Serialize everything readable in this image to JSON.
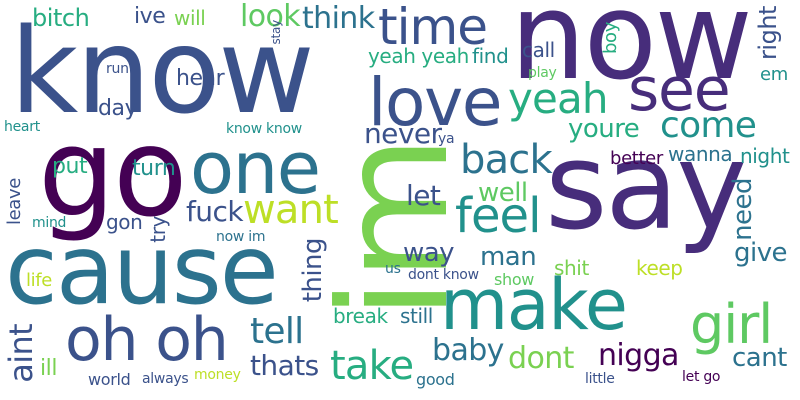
{
  "cloud": {
    "words": [
      {
        "text": "know",
        "color": "#3b528b"
      },
      {
        "text": "now",
        "color": "#472d7b"
      },
      {
        "text": "go",
        "color": "#440154"
      },
      {
        "text": "say",
        "color": "#472d7b"
      },
      {
        "text": "cause",
        "color": "#2c728e"
      },
      {
        "text": "im",
        "color": "#7ad151"
      },
      {
        "text": "make",
        "color": "#21918c"
      },
      {
        "text": "love",
        "color": "#3b528b"
      },
      {
        "text": "one",
        "color": "#2c728e"
      },
      {
        "text": "oh oh",
        "color": "#3b528b"
      },
      {
        "text": "time",
        "color": "#3b528b"
      },
      {
        "text": "see",
        "color": "#472d7b"
      },
      {
        "text": "yeah",
        "color": "#27ad81"
      },
      {
        "text": "girl",
        "color": "#5ec962"
      },
      {
        "text": "feel",
        "color": "#21918c"
      },
      {
        "text": "back",
        "color": "#2c728e"
      },
      {
        "text": "come",
        "color": "#21918c"
      },
      {
        "text": "want",
        "color": "#bddf26"
      },
      {
        "text": "take",
        "color": "#27ad81"
      },
      {
        "text": "tell",
        "color": "#2c728e"
      },
      {
        "text": "fuck",
        "color": "#3b528b"
      },
      {
        "text": "nigga",
        "color": "#440154"
      },
      {
        "text": "baby",
        "color": "#2c728e"
      },
      {
        "text": "dont",
        "color": "#7ad151"
      },
      {
        "text": "thing",
        "color": "#3b528b"
      },
      {
        "text": "thats",
        "color": "#3b528b"
      },
      {
        "text": "aint",
        "color": "#3b528b"
      },
      {
        "text": "look",
        "color": "#5ec962"
      },
      {
        "text": "think",
        "color": "#2c728e"
      },
      {
        "text": "never",
        "color": "#3b528b"
      },
      {
        "text": "youre",
        "color": "#27ad81"
      },
      {
        "text": "well",
        "color": "#5ec962"
      },
      {
        "text": "let",
        "color": "#3b528b"
      },
      {
        "text": "way",
        "color": "#3b528b"
      },
      {
        "text": "man",
        "color": "#2c728e"
      },
      {
        "text": "give",
        "color": "#2c728e"
      },
      {
        "text": "cant",
        "color": "#2c728e"
      },
      {
        "text": "need",
        "color": "#2c728e"
      },
      {
        "text": "right",
        "color": "#3b528b"
      },
      {
        "text": "bitch",
        "color": "#27ad81"
      },
      {
        "text": "ive",
        "color": "#3b528b"
      },
      {
        "text": "will",
        "color": "#7ad151"
      },
      {
        "text": "yeah yeah",
        "color": "#27ad81"
      },
      {
        "text": "find",
        "color": "#21918c"
      },
      {
        "text": "call",
        "color": "#3b528b"
      },
      {
        "text": "boy",
        "color": "#27ad81"
      },
      {
        "text": "em",
        "color": "#21918c"
      },
      {
        "text": "hear",
        "color": "#3b528b"
      },
      {
        "text": "day",
        "color": "#3b528b"
      },
      {
        "text": "put",
        "color": "#27ad81"
      },
      {
        "text": "turn",
        "color": "#21918c"
      },
      {
        "text": "try",
        "color": "#3b528b"
      },
      {
        "text": "gon",
        "color": "#3b528b"
      },
      {
        "text": "leave",
        "color": "#3b528b"
      },
      {
        "text": "life",
        "color": "#bddf26"
      },
      {
        "text": "mind",
        "color": "#21918c"
      },
      {
        "text": "now im",
        "color": "#2c728e"
      },
      {
        "text": "heart",
        "color": "#21918c"
      },
      {
        "text": "know know",
        "color": "#21918c"
      },
      {
        "text": "run",
        "color": "#3b528b"
      },
      {
        "text": "stay",
        "color": "#3b528b"
      },
      {
        "text": "play",
        "color": "#5ec962"
      },
      {
        "text": "wanna",
        "color": "#2c728e"
      },
      {
        "text": "night",
        "color": "#21918c"
      },
      {
        "text": "better",
        "color": "#440154"
      },
      {
        "text": "ya",
        "color": "#3b528b"
      },
      {
        "text": "shit",
        "color": "#7ad151"
      },
      {
        "text": "keep",
        "color": "#bddf26"
      },
      {
        "text": "us",
        "color": "#2c728e"
      },
      {
        "text": "dont know",
        "color": "#3b528b"
      },
      {
        "text": "show",
        "color": "#5ec962"
      },
      {
        "text": "break",
        "color": "#27ad81"
      },
      {
        "text": "still",
        "color": "#2c728e"
      },
      {
        "text": "ill",
        "color": "#7ad151"
      },
      {
        "text": "world",
        "color": "#3b528b"
      },
      {
        "text": "always",
        "color": "#3b528b"
      },
      {
        "text": "money",
        "color": "#bddf26"
      },
      {
        "text": "good",
        "color": "#2c728e"
      },
      {
        "text": "little",
        "color": "#3b528b"
      },
      {
        "text": "let go",
        "color": "#440154"
      }
    ]
  }
}
